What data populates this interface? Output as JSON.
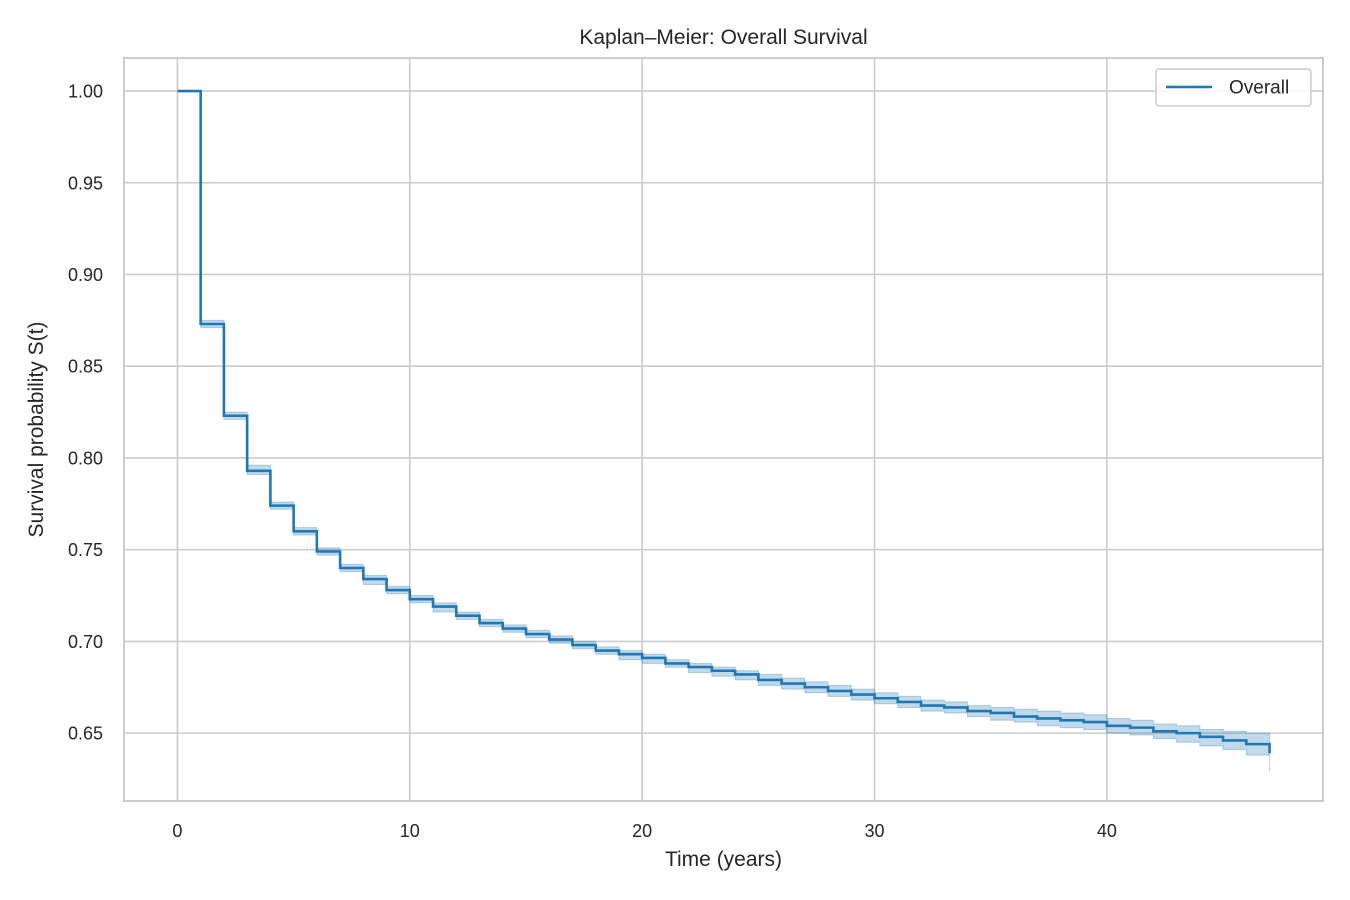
{
  "colors": {
    "series": "#1f77b4",
    "band": "#1f77b4",
    "grid": "#cccccc",
    "frame": "#cccccc",
    "text": "#262626",
    "background": "#ffffff"
  },
  "chart_data": {
    "type": "line",
    "step": "post",
    "title": "Kaplan–Meier: Overall Survival",
    "xlabel": "Time (years)",
    "ylabel": "Survival probability S(t)",
    "xlim": [
      -2.3,
      49.3
    ],
    "ylim": [
      0.613,
      1.018
    ],
    "xticks": [
      0,
      10,
      20,
      30,
      40
    ],
    "yticks": [
      0.65,
      0.7,
      0.75,
      0.8,
      0.85,
      0.9,
      0.95,
      1.0
    ],
    "ytick_labels": [
      "0.65",
      "0.70",
      "0.75",
      "0.80",
      "0.85",
      "0.90",
      "0.95",
      "1.00"
    ],
    "xtick_labels": [
      "0",
      "10",
      "20",
      "30",
      "40"
    ],
    "grid": true,
    "legend": {
      "position": "top-right",
      "entries": [
        "Overall"
      ]
    },
    "series": [
      {
        "name": "Overall",
        "x": [
          0,
          1,
          2,
          3,
          4,
          5,
          6,
          7,
          8,
          9,
          10,
          11,
          12,
          13,
          14,
          15,
          16,
          17,
          18,
          19,
          20,
          21,
          22,
          23,
          24,
          25,
          26,
          27,
          28,
          29,
          30,
          31,
          32,
          33,
          34,
          35,
          36,
          37,
          38,
          39,
          40,
          41,
          42,
          43,
          44,
          45,
          46,
          47
        ],
        "y": [
          1.0,
          0.873,
          0.823,
          0.793,
          0.774,
          0.76,
          0.749,
          0.74,
          0.734,
          0.728,
          0.723,
          0.719,
          0.714,
          0.71,
          0.707,
          0.704,
          0.701,
          0.698,
          0.695,
          0.693,
          0.691,
          0.688,
          0.686,
          0.684,
          0.682,
          0.679,
          0.677,
          0.675,
          0.673,
          0.671,
          0.669,
          0.667,
          0.665,
          0.664,
          0.662,
          0.661,
          0.659,
          0.658,
          0.657,
          0.656,
          0.654,
          0.653,
          0.651,
          0.65,
          0.648,
          0.646,
          0.644,
          0.639
        ],
        "ci_lower": [
          1.0,
          0.871,
          0.821,
          0.791,
          0.772,
          0.758,
          0.747,
          0.738,
          0.731,
          0.726,
          0.721,
          0.716,
          0.712,
          0.708,
          0.705,
          0.702,
          0.699,
          0.696,
          0.693,
          0.69,
          0.688,
          0.686,
          0.683,
          0.681,
          0.679,
          0.676,
          0.674,
          0.672,
          0.67,
          0.668,
          0.666,
          0.664,
          0.662,
          0.661,
          0.659,
          0.657,
          0.656,
          0.654,
          0.653,
          0.652,
          0.65,
          0.649,
          0.647,
          0.645,
          0.643,
          0.641,
          0.638,
          0.629
        ],
        "ci_upper": [
          1.0,
          0.875,
          0.825,
          0.796,
          0.776,
          0.762,
          0.751,
          0.742,
          0.736,
          0.73,
          0.725,
          0.721,
          0.716,
          0.712,
          0.709,
          0.706,
          0.703,
          0.7,
          0.697,
          0.695,
          0.693,
          0.69,
          0.688,
          0.686,
          0.684,
          0.682,
          0.68,
          0.678,
          0.676,
          0.674,
          0.672,
          0.67,
          0.668,
          0.667,
          0.665,
          0.664,
          0.663,
          0.662,
          0.661,
          0.66,
          0.658,
          0.657,
          0.655,
          0.654,
          0.652,
          0.651,
          0.65,
          0.65
        ],
        "x_end": 47
      }
    ]
  }
}
